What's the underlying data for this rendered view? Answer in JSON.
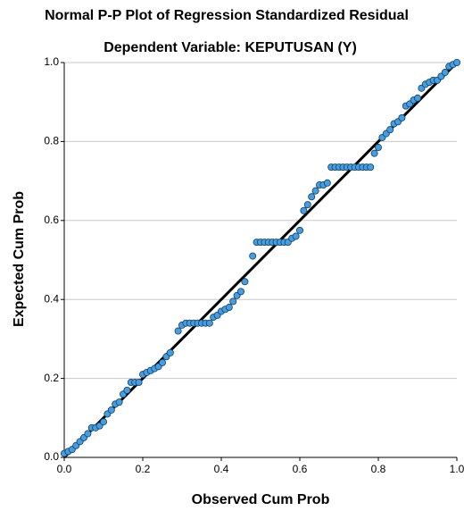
{
  "chart_data": {
    "type": "scatter",
    "title": "Normal P-P Plot of Regression Standardized Residual",
    "subtitle": "Dependent Variable: KEPUTUSAN (Y)",
    "x_label": "Observed Cum Prob",
    "y_label": "Expected Cum Prob",
    "color": "#3fa0e8",
    "grid": true,
    "reference_line": true,
    "xlim": [
      0,
      1
    ],
    "ylim": [
      0,
      1
    ],
    "xticks": [
      {
        "value": 0,
        "label": "0.0"
      },
      {
        "value": 0.2,
        "label": "0.2"
      },
      {
        "value": 0.4,
        "label": "0.4"
      },
      {
        "value": 0.6,
        "label": "0.6"
      },
      {
        "value": 0.8,
        "label": "0.8"
      },
      {
        "value": 1,
        "label": "1.0"
      }
    ],
    "yticks": [
      {
        "value": 0,
        "label": "0.0"
      },
      {
        "value": 0.2,
        "label": "0.2"
      },
      {
        "value": 0.4,
        "label": "0.4"
      },
      {
        "value": 0.6,
        "label": "0.6"
      },
      {
        "value": 0.8,
        "label": "0.8"
      },
      {
        "value": 1,
        "label": "1.0"
      }
    ],
    "x": [
      0.0,
      0.01,
      0.02,
      0.03,
      0.04,
      0.05,
      0.06,
      0.07,
      0.08,
      0.09,
      0.1,
      0.11,
      0.12,
      0.13,
      0.14,
      0.15,
      0.16,
      0.17,
      0.18,
      0.19,
      0.2,
      0.21,
      0.22,
      0.23,
      0.24,
      0.25,
      0.26,
      0.27,
      0.29,
      0.3,
      0.31,
      0.32,
      0.33,
      0.34,
      0.35,
      0.36,
      0.37,
      0.38,
      0.39,
      0.4,
      0.41,
      0.42,
      0.43,
      0.44,
      0.45,
      0.46,
      0.48,
      0.49,
      0.5,
      0.51,
      0.52,
      0.53,
      0.54,
      0.55,
      0.56,
      0.57,
      0.58,
      0.59,
      0.6,
      0.61,
      0.62,
      0.63,
      0.64,
      0.65,
      0.66,
      0.67,
      0.68,
      0.69,
      0.7,
      0.71,
      0.72,
      0.73,
      0.74,
      0.75,
      0.76,
      0.77,
      0.78,
      0.79,
      0.8,
      0.81,
      0.82,
      0.83,
      0.84,
      0.85,
      0.86,
      0.87,
      0.88,
      0.89,
      0.9,
      0.91,
      0.92,
      0.93,
      0.94,
      0.95,
      0.96,
      0.97,
      0.98,
      0.99,
      1.0
    ],
    "y": [
      0.01,
      0.015,
      0.02,
      0.03,
      0.04,
      0.05,
      0.06,
      0.075,
      0.075,
      0.08,
      0.09,
      0.11,
      0.12,
      0.135,
      0.14,
      0.16,
      0.17,
      0.19,
      0.19,
      0.19,
      0.21,
      0.215,
      0.22,
      0.225,
      0.23,
      0.24,
      0.255,
      0.265,
      0.32,
      0.335,
      0.34,
      0.34,
      0.34,
      0.34,
      0.34,
      0.34,
      0.34,
      0.355,
      0.36,
      0.37,
      0.375,
      0.38,
      0.395,
      0.41,
      0.42,
      0.445,
      0.51,
      0.545,
      0.545,
      0.545,
      0.545,
      0.545,
      0.545,
      0.545,
      0.545,
      0.545,
      0.555,
      0.56,
      0.575,
      0.625,
      0.64,
      0.66,
      0.675,
      0.69,
      0.69,
      0.695,
      0.735,
      0.735,
      0.735,
      0.735,
      0.735,
      0.735,
      0.735,
      0.735,
      0.735,
      0.735,
      0.735,
      0.77,
      0.785,
      0.81,
      0.82,
      0.83,
      0.845,
      0.85,
      0.86,
      0.89,
      0.895,
      0.905,
      0.91,
      0.935,
      0.945,
      0.95,
      0.955,
      0.955,
      0.965,
      0.975,
      0.99,
      0.995,
      1.0
    ]
  }
}
